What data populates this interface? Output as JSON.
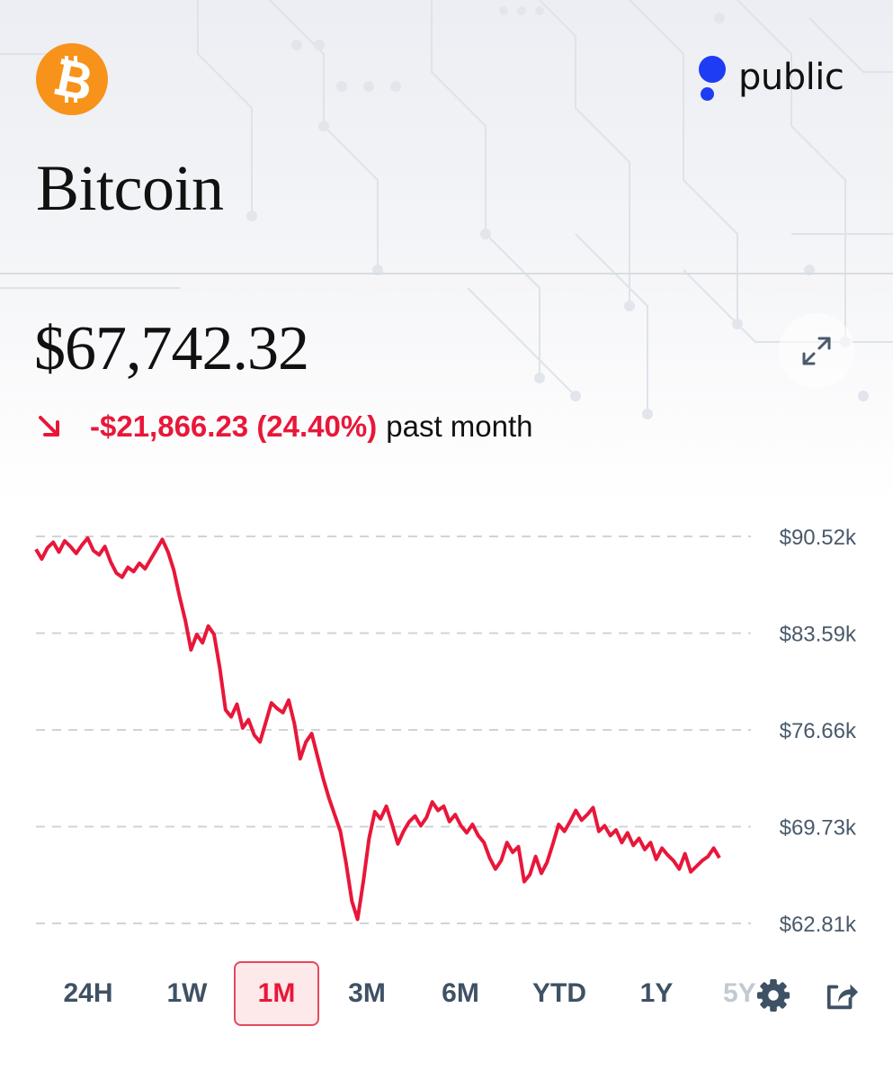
{
  "header": {
    "asset_icon": "bitcoin-icon",
    "brand_name": "public",
    "brand_color": "#1d3cf3",
    "asset_color": "#f7931a",
    "title": "Bitcoin"
  },
  "quote": {
    "price": "$67,742.32",
    "change": "-$21,866.23 (24.40%)",
    "change_period": "past month",
    "change_direction": "down",
    "negative_color": "#e8173a"
  },
  "chart_data": {
    "type": "line",
    "series": [
      {
        "color": "#e8173a",
        "values": [
          89.6,
          88.9,
          89.7,
          90.1,
          89.4,
          90.2,
          89.8,
          89.3,
          89.9,
          90.4,
          89.5,
          89.2,
          89.8,
          88.7,
          87.9,
          87.6,
          88.3,
          88.0,
          88.6,
          88.2,
          88.9,
          89.6,
          90.3,
          89.4,
          88.1,
          86.2,
          84.5,
          82.4,
          83.5,
          82.9,
          84.1,
          83.5,
          81.1,
          78.1,
          77.6,
          78.5,
          76.8,
          77.4,
          76.3,
          75.8,
          77.2,
          78.6,
          78.2,
          77.9,
          78.8,
          77.1,
          74.6,
          75.8,
          76.4,
          74.8,
          73.2,
          71.8,
          70.6,
          69.4,
          67.1,
          64.4,
          63.1,
          65.8,
          68.9,
          70.8,
          70.3,
          71.2,
          69.9,
          68.5,
          69.4,
          70.1,
          70.5,
          69.8,
          70.4,
          71.5,
          70.9,
          71.2,
          70.1,
          70.6,
          69.8,
          69.3,
          69.9,
          69.1,
          68.6,
          67.5,
          66.7,
          67.3,
          68.6,
          67.9,
          68.3,
          65.8,
          66.3,
          67.6,
          66.4,
          67.2,
          68.5,
          69.9,
          69.4,
          70.1,
          70.9,
          70.2,
          70.6,
          71.1,
          69.4,
          69.8,
          69.1,
          69.5,
          68.6,
          69.3,
          68.4,
          68.9,
          68.1,
          68.6,
          67.4,
          68.2,
          67.7,
          67.3,
          66.7,
          67.8,
          66.5,
          66.9,
          67.3,
          67.6,
          68.2,
          67.5
        ]
      }
    ],
    "ylim": [
      62.81,
      90.52
    ],
    "y_ticks": [
      "$90.52k",
      "$83.59k",
      "$76.66k",
      "$69.73k",
      "$62.81k"
    ],
    "grid": true,
    "legend": "none"
  },
  "ranges": {
    "items": [
      "24H",
      "1W",
      "1M",
      "3M",
      "6M",
      "YTD",
      "1Y",
      "5Y"
    ],
    "selected": "1M"
  },
  "actions": {
    "settings_icon": "gear-icon",
    "share_icon": "share-icon",
    "expand_icon": "expand-icon"
  }
}
